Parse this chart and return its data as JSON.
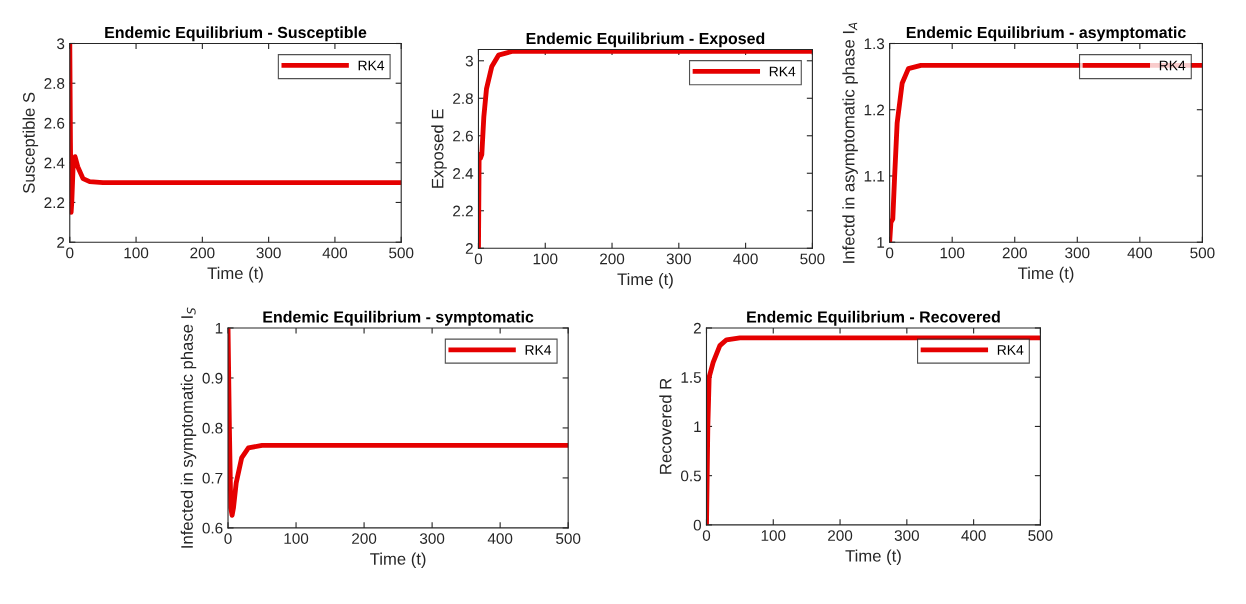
{
  "chart_data": [
    {
      "type": "line",
      "title": "Endemic Equilibrium - Susceptible",
      "xlabel": "Time (t)",
      "ylabel": "Susceptible S",
      "xlim": [
        0,
        500
      ],
      "xticks": [
        0,
        100,
        200,
        300,
        400,
        500
      ],
      "ylim": [
        2,
        3
      ],
      "yticks": [
        2,
        2.2,
        2.4,
        2.6,
        2.8,
        3
      ],
      "legend": "top right",
      "grid": false,
      "series": [
        {
          "name": "RK4",
          "color": "#e50000",
          "x": [
            0,
            1,
            2,
            3,
            5,
            8,
            12,
            20,
            30,
            50,
            500
          ],
          "values": [
            3.0,
            2.5,
            2.15,
            2.2,
            2.38,
            2.43,
            2.38,
            2.32,
            2.305,
            2.3,
            2.3
          ]
        }
      ]
    },
    {
      "type": "line",
      "title": "Endemic Equilibrium - Exposed",
      "xlabel": "Time (t)",
      "ylabel": "Exposed E",
      "xlim": [
        0,
        500
      ],
      "xticks": [
        0,
        100,
        200,
        300,
        400,
        500
      ],
      "ylim": [
        2,
        3.06
      ],
      "yticks": [
        2,
        2.2,
        2.4,
        2.6,
        2.8,
        3
      ],
      "legend": "top right",
      "grid": false,
      "series": [
        {
          "name": "RK4",
          "color": "#e50000",
          "x": [
            0,
            1,
            3,
            5,
            8,
            12,
            20,
            30,
            50,
            500
          ],
          "values": [
            2.0,
            2.5,
            2.48,
            2.5,
            2.7,
            2.85,
            2.97,
            3.03,
            3.05,
            3.05
          ]
        }
      ]
    },
    {
      "type": "line",
      "title": "Endemic Equilibrium - asymptomatic",
      "xlabel": "Time (t)",
      "ylabel": "Infectd in asymptomatic phase I$_{A}$",
      "xlim": [
        0,
        500
      ],
      "xticks": [
        0,
        100,
        200,
        300,
        400,
        500
      ],
      "ylim": [
        1,
        1.3
      ],
      "yticks": [
        1,
        1.1,
        1.2,
        1.3
      ],
      "legend": "top right",
      "grid": false,
      "series": [
        {
          "name": "RK4",
          "color": "#e50000",
          "x": [
            0,
            2,
            5,
            8,
            12,
            20,
            30,
            50,
            500
          ],
          "values": [
            1.0,
            1.03,
            1.035,
            1.1,
            1.18,
            1.24,
            1.262,
            1.267,
            1.267
          ]
        }
      ]
    },
    {
      "type": "line",
      "title": "Endemic Equilibrium - symptomatic",
      "xlabel": "Time (t)",
      "ylabel": "Infected in symptomatic phase I$_{S}$",
      "xlim": [
        0,
        500
      ],
      "xticks": [
        0,
        100,
        200,
        300,
        400,
        500
      ],
      "ylim": [
        0.6,
        1
      ],
      "yticks": [
        0.6,
        0.7,
        0.8,
        0.9,
        1
      ],
      "legend": "top right",
      "grid": false,
      "series": [
        {
          "name": "RK4",
          "color": "#e50000",
          "x": [
            0,
            2,
            4,
            6,
            8,
            12,
            20,
            30,
            50,
            500
          ],
          "values": [
            1.0,
            0.8,
            0.64,
            0.625,
            0.64,
            0.69,
            0.74,
            0.76,
            0.765,
            0.765
          ]
        }
      ]
    },
    {
      "type": "line",
      "title": "Endemic Equilibrium - Recovered",
      "xlabel": "Time (t)",
      "ylabel": "Recovered R",
      "xlim": [
        0,
        500
      ],
      "xticks": [
        0,
        100,
        200,
        300,
        400,
        500
      ],
      "ylim": [
        0,
        2
      ],
      "yticks": [
        0,
        0.5,
        1,
        1.5,
        2
      ],
      "legend": "top right",
      "grid": false,
      "series": [
        {
          "name": "RK4",
          "color": "#e50000",
          "x": [
            0,
            2,
            4,
            10,
            20,
            30,
            50,
            500
          ],
          "values": [
            0,
            1.0,
            1.5,
            1.65,
            1.82,
            1.88,
            1.9,
            1.9
          ]
        }
      ]
    }
  ]
}
